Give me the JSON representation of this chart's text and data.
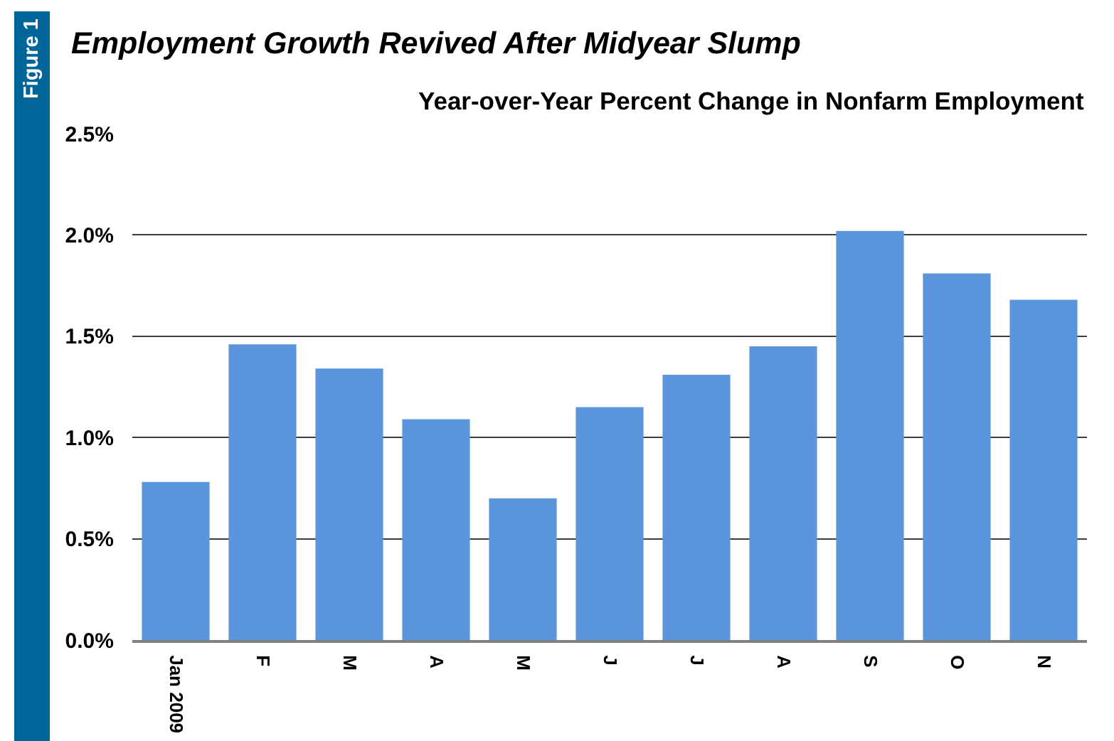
{
  "chart_data": {
    "type": "bar",
    "title": "Employment Growth Revived After Midyear Slump",
    "subtitle": "Year-over-Year Percent Change in Nonfarm Employment",
    "annotations": [
      "Figure 1"
    ],
    "categories": [
      "Jan 2009",
      "F",
      "M",
      "A",
      "M",
      "J",
      "J",
      "A",
      "S",
      "O",
      "N"
    ],
    "values": [
      0.78,
      1.46,
      1.34,
      1.09,
      0.7,
      1.15,
      1.31,
      1.45,
      2.02,
      1.81,
      1.68
    ],
    "color": "#5b96dc",
    "ylim": [
      0,
      2.5
    ],
    "yticks": [
      {
        "value": 0,
        "label": "0.0%"
      },
      {
        "value": 0.5,
        "label": "0.5%"
      },
      {
        "value": 1.0,
        "label": "1.0%"
      },
      {
        "value": 1.5,
        "label": "1.5%"
      },
      {
        "value": 2.0,
        "label": "2.0%"
      },
      {
        "value": 2.5,
        "label": "2.5%"
      }
    ],
    "grid": "y"
  }
}
